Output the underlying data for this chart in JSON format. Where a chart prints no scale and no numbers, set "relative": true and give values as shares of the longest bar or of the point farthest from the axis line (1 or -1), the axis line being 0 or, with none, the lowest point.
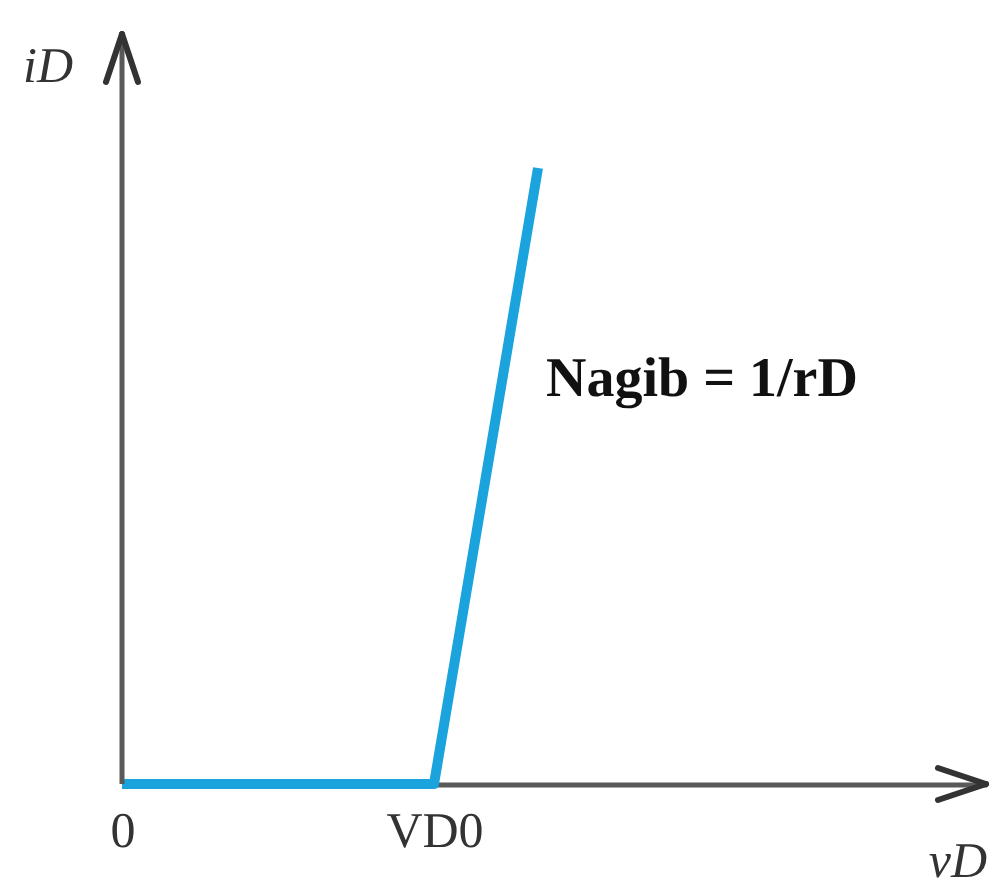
{
  "chart_data": {
    "type": "line",
    "relative": true,
    "categories": [
      "0",
      null,
      null,
      "VD0",
      null,
      null,
      null,
      null,
      null
    ],
    "series": [
      {
        "color": "#1ba3dd",
        "values": [
          0,
          0,
          0,
          0,
          1,
          null,
          null,
          null,
          null
        ]
      }
    ],
    "xlabel": "vD",
    "ylabel": "iD",
    "tick_labels": "x",
    "annotations": [
      "Nagib = 1/rD"
    ]
  }
}
